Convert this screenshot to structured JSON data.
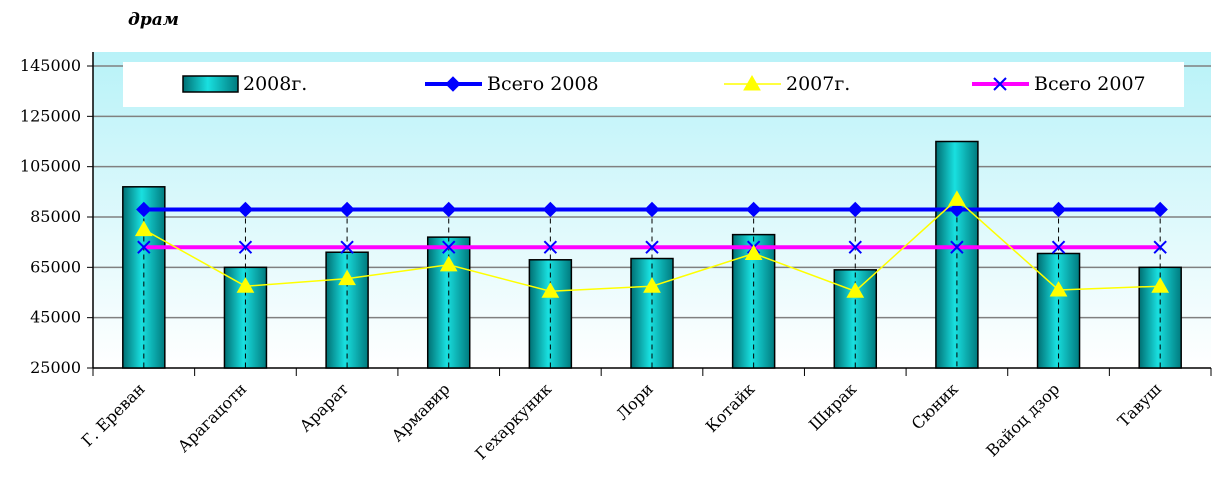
{
  "chart_data": {
    "type": "bar",
    "unit_label": "драм",
    "categories": [
      "Г. Ереван",
      "Арагацотн",
      "Арарат",
      "Армавир",
      "Гехаркуник",
      "Лори",
      "Котайк",
      "Ширак",
      "Сюник",
      "Вайоц дзор",
      "Тавуш"
    ],
    "series": [
      {
        "name": "2008г.",
        "kind": "bar",
        "color": "#00CCCC",
        "values": [
          97000,
          65000,
          71000,
          77000,
          68000,
          68500,
          78000,
          64000,
          115000,
          70500,
          65000
        ]
      },
      {
        "name": "Всего 2008",
        "kind": "line",
        "marker": "diamond",
        "color": "#0000FF",
        "values": [
          88000,
          88000,
          88000,
          88000,
          88000,
          88000,
          88000,
          88000,
          88000,
          88000,
          88000
        ]
      },
      {
        "name": "2007г.",
        "kind": "line",
        "marker": "triangle",
        "color": "#FFFF00",
        "values": [
          80000,
          57500,
          60500,
          66000,
          55500,
          57500,
          70500,
          55500,
          92000,
          56000,
          57500
        ]
      },
      {
        "name": "Всего 2007",
        "kind": "line",
        "marker": "x",
        "color": "#FF00FF",
        "values": [
          73000,
          73000,
          73000,
          73000,
          73000,
          73000,
          73000,
          73000,
          73000,
          73000,
          73000
        ]
      }
    ],
    "yticks": [
      25000,
      45000,
      65000,
      85000,
      105000,
      125000,
      145000
    ],
    "ylim": [
      25000,
      150000
    ],
    "grid": true,
    "legend_position": "top"
  }
}
